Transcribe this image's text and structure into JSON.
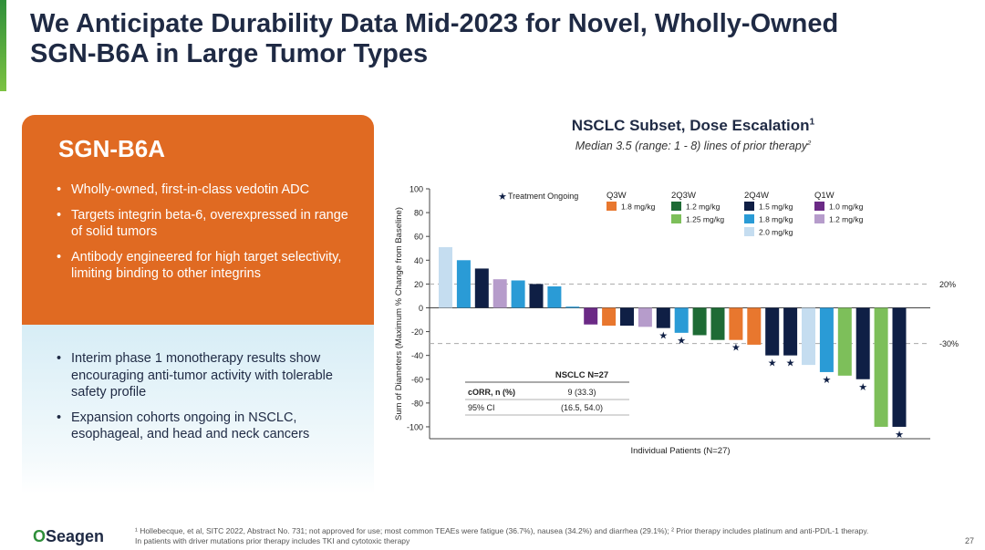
{
  "title_lines": [
    "We Anticipate Durability Data Mid-2023 for Novel, Wholly-Owned",
    "SGN-B6A in Large Tumor Types"
  ],
  "panel": {
    "heading": "SGN-B6A",
    "top_bullets": [
      "Wholly-owned, first-in-class vedotin ADC",
      "Targets integrin beta-6, overexpressed in range of solid tumors",
      "Antibody engineered for high target selectivity, limiting binding to other integrins"
    ],
    "bottom_bullets": [
      "Interim phase 1 monotherapy results show encouraging anti-tumor activity with tolerable safety profile",
      "Expansion cohorts ongoing in NSCLC, esophageal, and head and neck cancers"
    ]
  },
  "chart_header": {
    "title": "NSCLC Subset, Dose Escalation",
    "title_sup": "1",
    "subtitle": "Median 3.5 (range: 1 - 8) lines of prior therapy",
    "subtitle_sup": "2"
  },
  "chart_data": {
    "type": "bar",
    "title": "NSCLC Subset, Dose Escalation",
    "xlabel": "Individual Patients (N=27)",
    "ylabel": "Sum of Diameters (Maximum % Change from Baseline)",
    "ylim": [
      -110,
      100
    ],
    "yticks": [
      100,
      80,
      60,
      40,
      20,
      0,
      -20,
      -40,
      -60,
      -80,
      -100
    ],
    "reference_lines": [
      {
        "value": 20,
        "label": "20%"
      },
      {
        "value": -30,
        "label": "-30%"
      }
    ],
    "ongoing_label": "Treatment Ongoing",
    "ongoing_marker": "★",
    "legend_groups": [
      {
        "name": "Q3W",
        "items": [
          {
            "label": "1.8 mg/kg",
            "color": "#e8772e"
          }
        ]
      },
      {
        "name": "2Q3W",
        "items": [
          {
            "label": "1.2 mg/kg",
            "color": "#1e6b35"
          },
          {
            "label": "1.25 mg/kg",
            "color": "#7dbf5a"
          }
        ]
      },
      {
        "name": "2Q4W",
        "items": [
          {
            "label": "1.5 mg/kg",
            "color": "#0f1f45"
          },
          {
            "label": "1.8 mg/kg",
            "color": "#2a9bd6"
          },
          {
            "label": "2.0 mg/kg",
            "color": "#c5ddf0"
          }
        ]
      },
      {
        "name": "Q1W",
        "items": [
          {
            "label": "1.0 mg/kg",
            "color": "#6b2a86"
          },
          {
            "label": "1.2 mg/kg",
            "color": "#b69ccb"
          }
        ]
      }
    ],
    "bars": [
      {
        "value": 51,
        "color": "#c5ddf0",
        "ongoing": false
      },
      {
        "value": 40,
        "color": "#2a9bd6",
        "ongoing": false
      },
      {
        "value": 33,
        "color": "#0f1f45",
        "ongoing": false
      },
      {
        "value": 24,
        "color": "#b69ccb",
        "ongoing": false
      },
      {
        "value": 23,
        "color": "#2a9bd6",
        "ongoing": false
      },
      {
        "value": 20,
        "color": "#0f1f45",
        "ongoing": false
      },
      {
        "value": 18,
        "color": "#2a9bd6",
        "ongoing": false
      },
      {
        "value": 1,
        "color": "#2a9bd6",
        "ongoing": false
      },
      {
        "value": -14,
        "color": "#6b2a86",
        "ongoing": false
      },
      {
        "value": -15,
        "color": "#e8772e",
        "ongoing": false
      },
      {
        "value": -15,
        "color": "#0f1f45",
        "ongoing": false
      },
      {
        "value": -16,
        "color": "#b69ccb",
        "ongoing": false
      },
      {
        "value": -17,
        "color": "#0f1f45",
        "ongoing": true
      },
      {
        "value": -21,
        "color": "#2a9bd6",
        "ongoing": true
      },
      {
        "value": -23,
        "color": "#1e6b35",
        "ongoing": false
      },
      {
        "value": -27,
        "color": "#1e6b35",
        "ongoing": false
      },
      {
        "value": -27,
        "color": "#e8772e",
        "ongoing": true
      },
      {
        "value": -31,
        "color": "#e8772e",
        "ongoing": false
      },
      {
        "value": -40,
        "color": "#0f1f45",
        "ongoing": true
      },
      {
        "value": -40,
        "color": "#0f1f45",
        "ongoing": true
      },
      {
        "value": -48,
        "color": "#c5ddf0",
        "ongoing": false
      },
      {
        "value": -54,
        "color": "#2a9bd6",
        "ongoing": true
      },
      {
        "value": -57,
        "color": "#7dbf5a",
        "ongoing": false
      },
      {
        "value": -60,
        "color": "#0f1f45",
        "ongoing": true
      },
      {
        "value": -100,
        "color": "#7dbf5a",
        "ongoing": false
      },
      {
        "value": -100,
        "color": "#0f1f45",
        "ongoing": true
      }
    ],
    "table": {
      "header": "NSCLC N=27",
      "rows": [
        {
          "label": "cORR, n (%)",
          "value": "9 (33.3)"
        },
        {
          "label": "95% CI",
          "value": "(16.5, 54.0)"
        }
      ]
    }
  },
  "footnote_lines": [
    "¹ Hollebecque, et al, SITC 2022, Abstract No. 731; not approved for use; most common TEAEs were fatigue (36.7%), nausea (34.2%) and diarrhea (29.1%); ² Prior therapy includes platinum and anti-PD/L-1 therapy.",
    "In patients with driver mutations prior therapy includes TKI and cytotoxic therapy"
  ],
  "logo": {
    "mark": "O",
    "text": "Seagen"
  },
  "page_number": "27"
}
